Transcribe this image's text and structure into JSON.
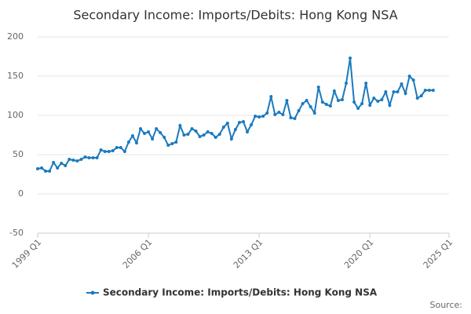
{
  "chart_data": {
    "type": "line",
    "title": "Secondary Income: Imports/Debits: Hong Kong NSA",
    "source": "Source:",
    "categories": [
      "1999 Q1",
      null,
      null,
      null,
      null,
      null,
      null,
      null,
      null,
      null,
      null,
      null,
      null,
      null,
      null,
      null,
      null,
      null,
      null,
      null,
      null,
      null,
      null,
      null,
      null,
      null,
      null,
      null,
      "2006 Q1",
      null,
      null,
      null,
      null,
      null,
      null,
      null,
      null,
      null,
      null,
      null,
      null,
      null,
      null,
      null,
      null,
      null,
      null,
      null,
      null,
      null,
      null,
      null,
      null,
      null,
      null,
      null,
      "2013 Q1",
      null,
      null,
      null,
      null,
      null,
      null,
      null,
      null,
      null,
      null,
      null,
      null,
      null,
      null,
      null,
      null,
      null,
      null,
      null,
      null,
      null,
      null,
      null,
      null,
      null,
      null,
      null,
      "2020 Q1",
      null,
      null,
      null,
      null,
      null,
      null,
      null,
      null,
      null,
      null,
      null,
      null,
      null,
      null,
      null,
      null,
      null,
      null,
      null,
      "2025 Q1"
    ],
    "series": [
      {
        "name": "Secondary Income: Imports/Debits: Hong Kong NSA",
        "color": "#1a7abf",
        "values": [
          32,
          33,
          29,
          29,
          40,
          33,
          39,
          36,
          44,
          43,
          42,
          44,
          47,
          46,
          46,
          46,
          56,
          54,
          54,
          55,
          59,
          59,
          54,
          66,
          74,
          65,
          83,
          77,
          79,
          70,
          83,
          78,
          72,
          62,
          64,
          66,
          87,
          75,
          76,
          83,
          80,
          73,
          75,
          79,
          77,
          72,
          76,
          85,
          90,
          70,
          82,
          91,
          92,
          79,
          88,
          99,
          98,
          99,
          103,
          124,
          101,
          104,
          101,
          119,
          97,
          96,
          106,
          115,
          119,
          111,
          103,
          136,
          117,
          114,
          112,
          131,
          119,
          120,
          141,
          173,
          117,
          109,
          115,
          141,
          113,
          122,
          118,
          120,
          130,
          113,
          130,
          130,
          140,
          128,
          150,
          145,
          122,
          125,
          132,
          132,
          132,
          null,
          null,
          null,
          null
        ]
      }
    ],
    "ylim": [
      -50,
      200
    ],
    "yticks": [
      -50,
      0,
      50,
      100,
      150,
      200
    ],
    "grid": true
  }
}
